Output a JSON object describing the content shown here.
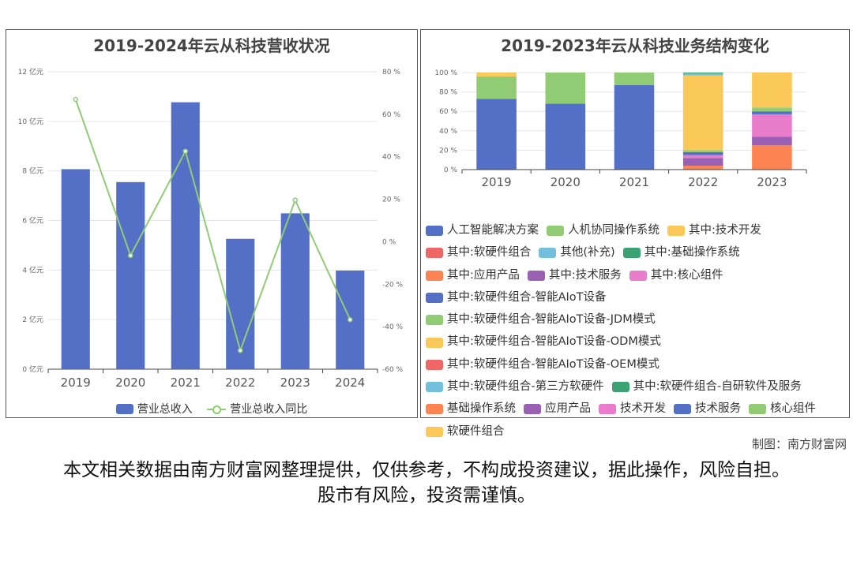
{
  "left_chart": {
    "title": "2019-2024年云从科技营收状况",
    "legend": {
      "bar": "营业总收入",
      "line": "营业总收入同比"
    },
    "y_left_ticks": [
      "0 亿元",
      "2 亿元",
      "4 亿元",
      "6 亿元",
      "8 亿元",
      "10 亿元",
      "12 亿元"
    ],
    "y_right_ticks": [
      "-60 %",
      "-40 %",
      "-20 %",
      "0 %",
      "20 %",
      "40 %",
      "60 %",
      "80 %"
    ],
    "colors": {
      "bar": "#5470c6",
      "line": "#91cc75"
    }
  },
  "right_chart": {
    "title": "2019-2023年云从科技业务结构变化",
    "y_ticks": [
      "0 %",
      "20 %",
      "40 %",
      "60 %",
      "80 %",
      "100 %"
    ]
  },
  "chart_data": [
    {
      "type": "bar",
      "title": "2019-2024年云从科技营收状况",
      "categories": [
        "2019",
        "2020",
        "2021",
        "2022",
        "2023",
        "2024"
      ],
      "series": [
        {
          "name": "营业总收入",
          "type": "bar",
          "axis": "left",
          "values": [
            8.07,
            7.55,
            10.77,
            5.26,
            6.29,
            3.98
          ]
        },
        {
          "name": "营业总收入同比",
          "type": "line",
          "axis": "right",
          "values": [
            67,
            -6.5,
            42.6,
            -51.2,
            19.6,
            -36.7
          ]
        }
      ],
      "ylim_left": [
        0,
        12
      ],
      "ylim_right": [
        -60,
        80
      ],
      "legend_position": "bottom"
    },
    {
      "type": "bar",
      "stacked": true,
      "title": "2019-2023年云从科技业务结构变化",
      "categories": [
        "2019",
        "2020",
        "2021",
        "2022",
        "2023"
      ],
      "ylim": [
        0,
        100
      ],
      "legend_position": "bottom",
      "series": [
        {
          "name": "人工智能解决方案",
          "color": "#5470c6",
          "values": [
            73,
            68,
            87,
            0,
            0
          ]
        },
        {
          "name": "人机协同操作系统",
          "color": "#91cc75",
          "values": [
            23,
            32,
            13,
            0,
            0
          ]
        },
        {
          "name": "其中:技术开发",
          "color": "#fac858",
          "values": [
            4,
            0,
            0,
            0,
            0
          ]
        },
        {
          "name": "其中:软硬件组合",
          "color": "#ee6666",
          "values": [
            0,
            0,
            0,
            0,
            0
          ]
        },
        {
          "name": "其他(补充)",
          "color": "#73c0de",
          "values": [
            0,
            0,
            0,
            0,
            0
          ]
        },
        {
          "name": "其中:基础操作系统",
          "color": "#3ba272",
          "values": [
            0,
            0,
            0,
            0,
            0
          ]
        },
        {
          "name": "其中:应用产品",
          "color": "#fc8452",
          "values": [
            0,
            0,
            0,
            4,
            0
          ]
        },
        {
          "name": "其中:技术服务",
          "color": "#9a60b4",
          "values": [
            0,
            0,
            0,
            8,
            0
          ]
        },
        {
          "name": "其中:核心组件",
          "color": "#ea7ccc",
          "values": [
            0,
            0,
            0,
            3,
            0
          ]
        },
        {
          "name": "其中:软硬件组合-智能AIoT设备",
          "color": "#5470c6",
          "values": [
            0,
            0,
            0,
            3,
            0
          ]
        },
        {
          "name": "其中:软硬件组合-智能AIoT设备-JDM模式",
          "color": "#91cc75",
          "values": [
            0,
            0,
            0,
            2,
            0
          ]
        },
        {
          "name": "其中:软硬件组合-智能AIoT设备-ODM模式",
          "color": "#fac858",
          "values": [
            0,
            0,
            0,
            77,
            0
          ]
        },
        {
          "name": "其中:软硬件组合-智能AIoT设备-OEM模式",
          "color": "#ee6666",
          "values": [
            0,
            0,
            0,
            0,
            0
          ]
        },
        {
          "name": "其中:软硬件组合-第三方软硬件",
          "color": "#73c0de",
          "values": [
            0,
            0,
            0,
            2,
            0
          ]
        },
        {
          "name": "其中:软硬件组合-自研软件及服务",
          "color": "#3ba272",
          "values": [
            0,
            0,
            0,
            1,
            0
          ]
        },
        {
          "name": "基础操作系统",
          "color": "#fc8452",
          "values": [
            0,
            0,
            0,
            0,
            25
          ]
        },
        {
          "name": "应用产品",
          "color": "#9a60b4",
          "values": [
            0,
            0,
            0,
            0,
            9
          ]
        },
        {
          "name": "技术开发",
          "color": "#ea7ccc",
          "values": [
            0,
            0,
            0,
            0,
            23
          ]
        },
        {
          "name": "技术服务",
          "color": "#5470c6",
          "values": [
            0,
            0,
            0,
            0,
            3
          ]
        },
        {
          "name": "核心组件",
          "color": "#91cc75",
          "values": [
            0,
            0,
            0,
            0,
            4
          ]
        },
        {
          "name": "软硬件组合",
          "color": "#fac858",
          "values": [
            0,
            0,
            0,
            0,
            36
          ]
        }
      ]
    }
  ],
  "footer": {
    "credit": "制图：南方财富网",
    "disclaimer": "本文相关数据由南方财富网整理提供，仅供参考，不构成投资建议，据此操作，风险自担。股市有风险，投资需谨慎。"
  }
}
